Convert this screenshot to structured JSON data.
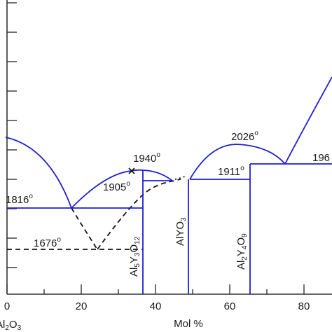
{
  "diagram": {
    "x_axis": {
      "title": "Mol %",
      "tick_labels": [
        "0",
        "20",
        "40",
        "60",
        "80"
      ],
      "corner_label": {
        "main": "Al",
        "sub1": "2",
        "mid": "O",
        "sub2": "3"
      }
    },
    "temperature_labels": [
      {
        "id": "t1816",
        "value": "1816",
        "unit_mark": "o"
      },
      {
        "id": "t1676",
        "value": "1676",
        "unit_mark": "o"
      },
      {
        "id": "t1940",
        "value": "1940",
        "unit_mark": "o"
      },
      {
        "id": "t1905",
        "value": "1905",
        "unit_mark": "o"
      },
      {
        "id": "t1911",
        "value": "1911",
        "unit_mark": "o"
      },
      {
        "id": "t2026",
        "value": "2026",
        "unit_mark": "o"
      },
      {
        "id": "t196",
        "value": "196",
        "unit_mark": ""
      }
    ],
    "phases": [
      {
        "id": "yag",
        "parts": [
          "Al",
          "5",
          "Y",
          "3",
          "O",
          "12"
        ]
      },
      {
        "id": "yap",
        "parts": [
          "AlYO",
          "3"
        ]
      },
      {
        "id": "yam",
        "parts": [
          "Al",
          "2",
          "Y",
          "4",
          "O",
          "9"
        ]
      }
    ],
    "colors": {
      "liquidus": "#1f1fd0",
      "metastable": "#111111",
      "axis": "#333333"
    },
    "marker": "x"
  }
}
